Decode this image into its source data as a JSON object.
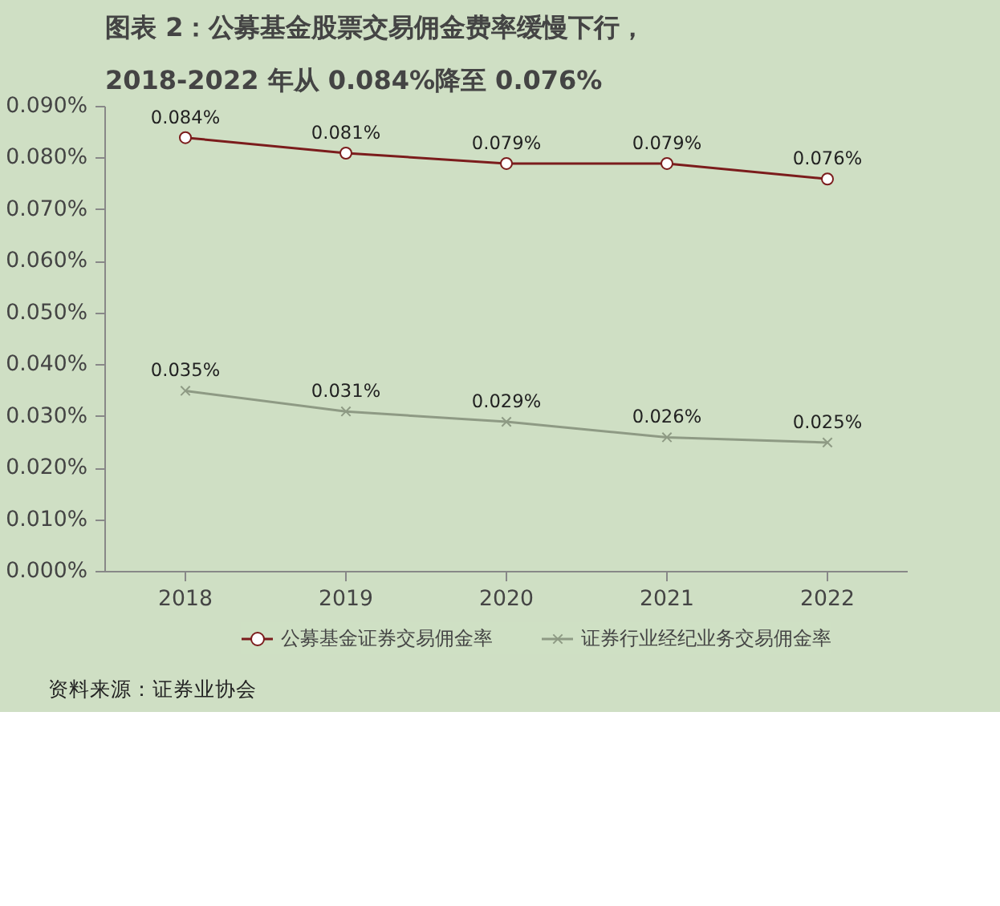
{
  "chart_data": {
    "type": "line",
    "title": "图表 2：公募基金股票交易佣金费率缓慢下行，",
    "subtitle": "2018-2022 年从 0.084%降至 0.076%",
    "categories": [
      "2018",
      "2019",
      "2020",
      "2021",
      "2022"
    ],
    "series": [
      {
        "name": "公募基金证券交易佣金率",
        "color": "#7b1c1c",
        "marker": "circle",
        "values": [
          0.084,
          0.081,
          0.079,
          0.079,
          0.076
        ],
        "value_labels": [
          "0.084%",
          "0.081%",
          "0.079%",
          "0.079%",
          "0.076%"
        ]
      },
      {
        "name": "证券行业经纪业务交易佣金率",
        "color": "#8e9a84",
        "marker": "cross",
        "values": [
          0.035,
          0.031,
          0.029,
          0.026,
          0.025
        ],
        "value_labels": [
          "0.035%",
          "0.031%",
          "0.029%",
          "0.026%",
          "0.025%"
        ]
      }
    ],
    "ylim": [
      0,
      0.09
    ],
    "yticks": [
      {
        "value": 0,
        "label": "0.000%"
      },
      {
        "value": 0.01,
        "label": "0.010%"
      },
      {
        "value": 0.02,
        "label": "0.020%"
      },
      {
        "value": 0.03,
        "label": "0.030%"
      },
      {
        "value": 0.04,
        "label": "0.040%"
      },
      {
        "value": 0.05,
        "label": "0.050%"
      },
      {
        "value": 0.06,
        "label": "0.060%"
      },
      {
        "value": 0.07,
        "label": "0.070%"
      },
      {
        "value": 0.08,
        "label": "0.080%"
      },
      {
        "value": 0.09,
        "label": "0.090%"
      }
    ],
    "grid": false,
    "legend": "bottom",
    "line_style": "solid",
    "annotations": [
      "资料来源：证券业协会"
    ]
  }
}
